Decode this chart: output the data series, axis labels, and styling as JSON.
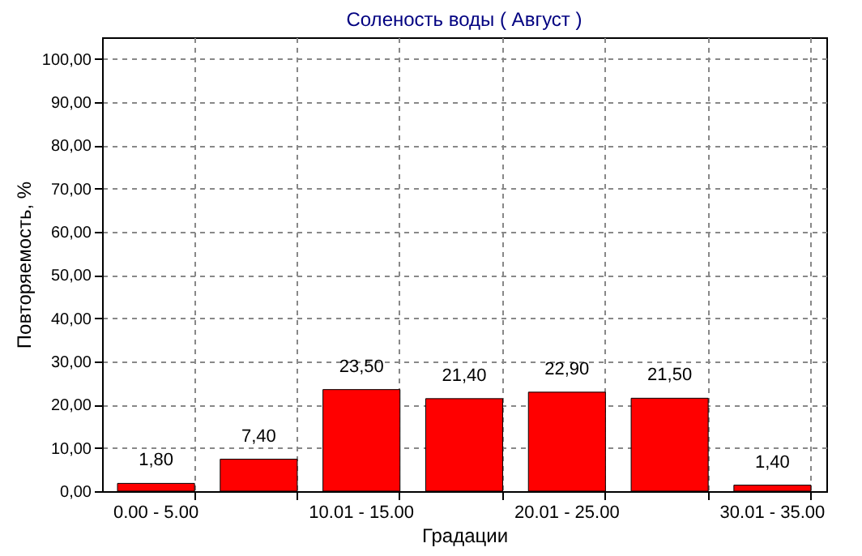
{
  "chart_data": {
    "type": "bar",
    "title": "Соленость воды    ( Август )",
    "xlabel": "Градации",
    "ylabel": "Повторяемость, %",
    "categories": [
      "0.00 - 5.00",
      null,
      "10.01 - 15.00",
      null,
      "20.01 - 25.00",
      null,
      "30.01 - 35.00"
    ],
    "values": [
      1.8,
      7.4,
      23.5,
      21.4,
      22.9,
      21.5,
      1.4
    ],
    "value_labels": [
      "1,80",
      "7,40",
      "23,50",
      "21,40",
      "22,90",
      "21,50",
      "1,40"
    ],
    "color": "#ff0000",
    "ylim": [
      0,
      105
    ],
    "yticks": [
      {
        "value": 0,
        "label": "0,00"
      },
      {
        "value": 10,
        "label": "10,00"
      },
      {
        "value": 20,
        "label": "20,00"
      },
      {
        "value": 30,
        "label": "30,00"
      },
      {
        "value": 40,
        "label": "40,00"
      },
      {
        "value": 50,
        "label": "50,00"
      },
      {
        "value": 60,
        "label": "60,00"
      },
      {
        "value": 70,
        "label": "70,00"
      },
      {
        "value": 80,
        "label": "80,00"
      },
      {
        "value": 90,
        "label": "90,00"
      },
      {
        "value": 100,
        "label": "100,00"
      }
    ],
    "grid": true
  }
}
